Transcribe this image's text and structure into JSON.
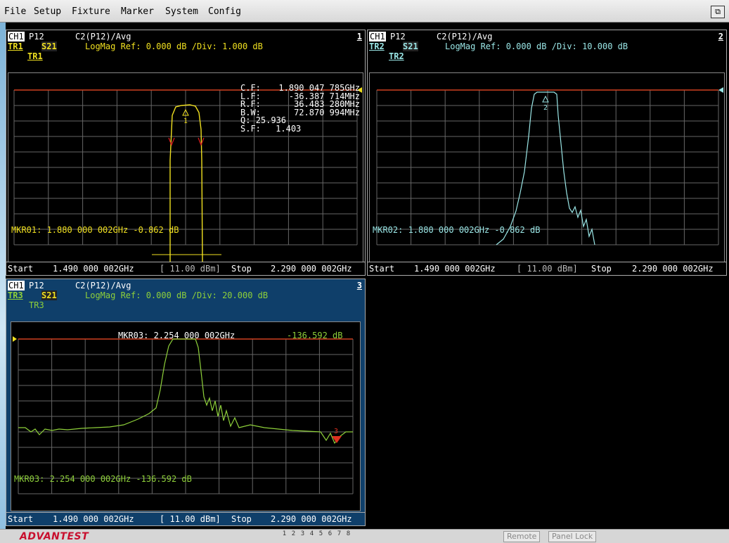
{
  "menu": [
    "File",
    "Setup",
    "Fixture",
    "Marker",
    "System",
    "Config"
  ],
  "restore_icon": "restore-window-icon",
  "panels": [
    {
      "ch": "CH1",
      "port": "P12",
      "calc": "C2(P12)/Avg",
      "num": "1",
      "tr": "TR1",
      "param": "S21",
      "scale": "LogMag  Ref:  0.000 dB  /Div: 1.000 dB",
      "trlabel": "TR1",
      "color": "#f0e020",
      "stats": [
        [
          "C.F:",
          "1.890 047 785GHz"
        ],
        [
          "L.F:",
          "-36.387 714MHz"
        ],
        [
          "R.F:",
          "36.483 280MHz"
        ],
        [
          "B.W:",
          "72.870 994MHz"
        ],
        [
          "Q:",
          "25.936"
        ],
        [
          "S.F:",
          "1.403"
        ]
      ],
      "marker": "MKR01:  1.880 000 002GHz     -0.862 dB",
      "marker_id": "1",
      "footer": {
        "start": "Start",
        "start_val": "1.490 000 002GHz",
        "power": "[ 11.00 dBm]",
        "stop": "Stop",
        "stop_val": "2.290 000 002GHz"
      }
    },
    {
      "ch": "CH1",
      "port": "P12",
      "calc": "C2(P12)/Avg",
      "num": "2",
      "tr": "TR2",
      "param": "S21",
      "scale": "LogMag  Ref:  0.000 dB  /Div: 10.000 dB",
      "trlabel": "TR2",
      "color": "#9ae6e6",
      "marker": "MKR02:  1.880 000 002GHz     -0.862 dB",
      "marker_id": "2",
      "footer": {
        "start": "Start",
        "start_val": "1.490 000 002GHz",
        "power": "[ 11.00 dBm]",
        "stop": "Stop",
        "stop_val": "2.290 000 002GHz"
      }
    },
    {
      "ch": "CH1",
      "port": "P12",
      "calc": "C2(P12)/Avg",
      "num": "3",
      "tr": "TR3",
      "param": "S21",
      "scale": "LogMag  Ref:  0.000 dB  /Div: 20.000 dB",
      "trlabel": "TR3",
      "color": "#8ed03a",
      "top_marker_label": "MKR03:  2.254 000 002GHz",
      "top_marker_value": "-136.592 dB",
      "marker": "MKR03:  2.254 000 002GHz   -136.592 dB",
      "marker_id": "3",
      "footer": {
        "start": "Start",
        "start_val": "1.490 000 002GHz",
        "power": "[ 11.00 dBm]",
        "stop": "Stop",
        "stop_val": "2.290 000 002GHz"
      }
    }
  ],
  "status": {
    "brand": "ADVANTEST",
    "pages": [
      "1",
      "2",
      "3",
      "4",
      "5",
      "6",
      "7",
      "8"
    ],
    "remote": "Remote",
    "panel_lock": "Panel Lock"
  }
}
